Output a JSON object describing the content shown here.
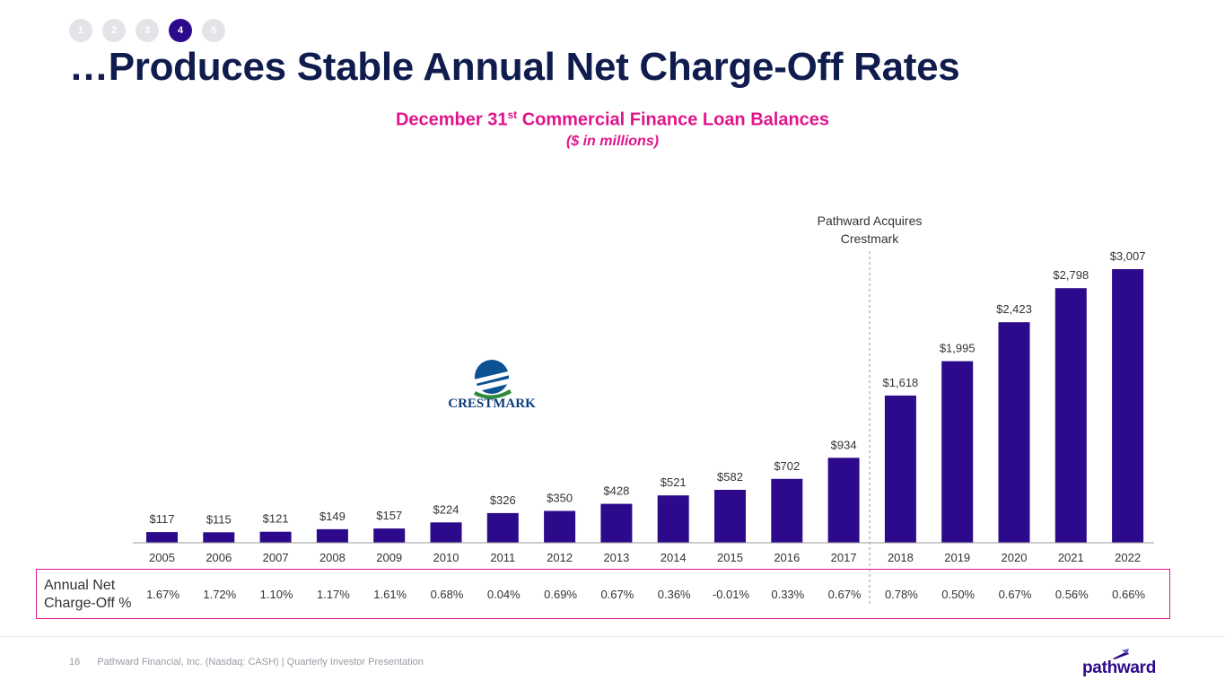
{
  "steps": [
    "1",
    "2",
    "3",
    "4",
    "5"
  ],
  "title": "…Produces Stable Annual Net Charge-Off Rates",
  "subtitle_main": "December 31",
  "subtitle_sup": "st",
  "subtitle_rest": " Commercial Finance Loan Balances",
  "units": "($ in millions)",
  "annotation": [
    "Pathward Acquires",
    "Crestmark"
  ],
  "crestmark_logo_text": "CRESTMARK",
  "nco_label": [
    "Annual Net",
    "Charge-Off %"
  ],
  "nco": [
    "1.67%",
    "1.72%",
    "1.10%",
    "1.17%",
    "1.61%",
    "0.68%",
    "0.04%",
    "0.69%",
    "0.67%",
    "0.36%",
    "-0.01%",
    "0.33%",
    "0.67%",
    "0.78%",
    "0.50%",
    "0.67%",
    "0.56%",
    "0.66%"
  ],
  "footer": {
    "page": "16",
    "text": "Pathward Financial, Inc. (Nasdaq: CASH) | Quarterly Investor Presentation"
  },
  "brand_logo_text": "pathward",
  "colors": {
    "bar": "#2d0a8c",
    "title": "#0f1c4d",
    "accent": "#e0158c"
  },
  "chart_data": {
    "type": "bar",
    "categories": [
      "2005",
      "2006",
      "2007",
      "2008",
      "2009",
      "2010",
      "2011",
      "2012",
      "2013",
      "2014",
      "2015",
      "2016",
      "2017",
      "2018",
      "2019",
      "2020",
      "2021",
      "2022"
    ],
    "values": [
      117,
      115,
      121,
      149,
      157,
      224,
      326,
      350,
      428,
      521,
      582,
      702,
      934,
      1618,
      1995,
      2423,
      2798,
      3007
    ],
    "labels": [
      "$117",
      "$115",
      "$121",
      "$149",
      "$157",
      "$224",
      "$326",
      "$350",
      "$428",
      "$521",
      "$582",
      "$702",
      "$934",
      "$1,618",
      "$1,995",
      "$2,423",
      "$2,798",
      "$3,007"
    ],
    "title": "December 31st Commercial Finance Loan Balances",
    "ylabel": "($ in millions)",
    "grid": false,
    "legend": "none"
  }
}
